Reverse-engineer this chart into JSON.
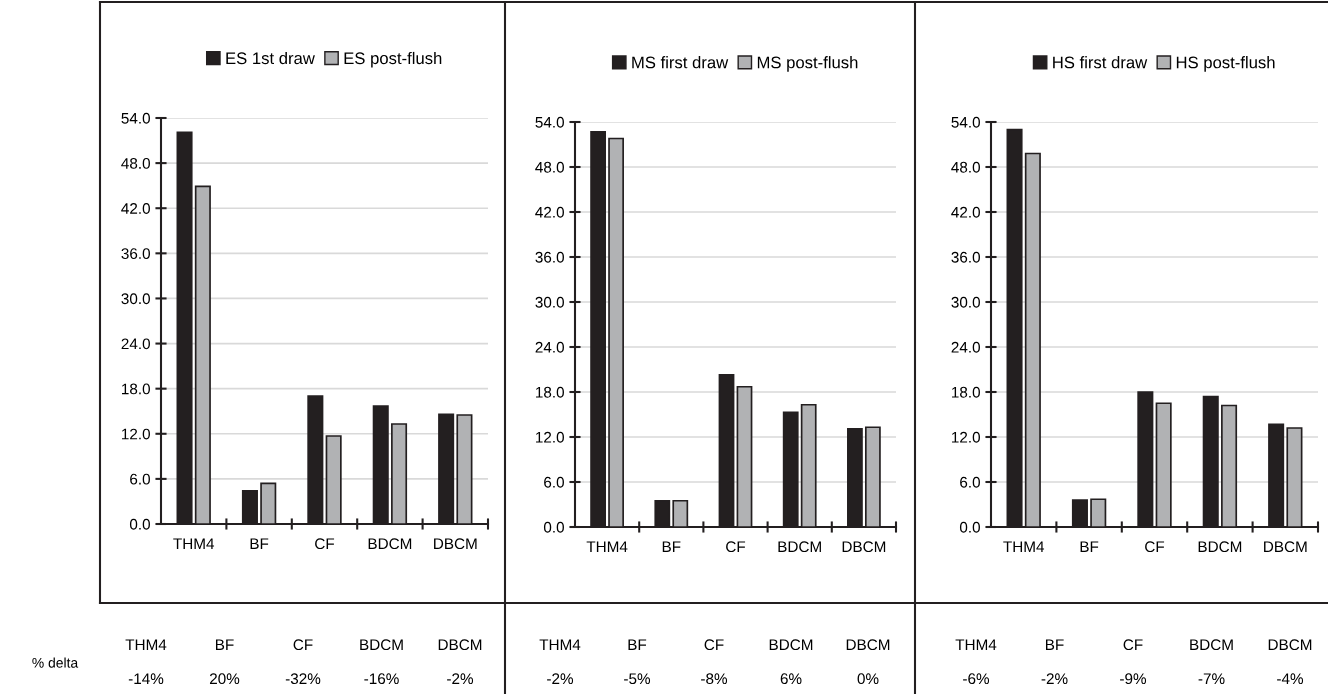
{
  "chart_data": [
    {
      "type": "bar",
      "categories": [
        "THM4",
        "BF",
        "CF",
        "BDCM",
        "DBCM"
      ],
      "series": [
        {
          "name": "ES 1st draw",
          "color": "#231f20",
          "values": [
            52.1,
            4.4,
            17.0,
            15.7,
            14.6
          ]
        },
        {
          "name": "ES post-flush",
          "color": "#b1b2b4",
          "values": [
            44.9,
            5.4,
            11.7,
            13.3,
            14.5
          ]
        }
      ],
      "ylim": [
        0,
        54
      ],
      "yticks": [
        {
          "value": 0,
          "label": "0.0"
        },
        {
          "value": 6,
          "label": "6.0"
        },
        {
          "value": 12,
          "label": "12.0"
        },
        {
          "value": 18,
          "label": "18.0"
        },
        {
          "value": 24,
          "label": "24.0"
        },
        {
          "value": 30,
          "label": "30.0"
        },
        {
          "value": 36,
          "label": "36.0"
        },
        {
          "value": 42,
          "label": "42.0"
        },
        {
          "value": 48,
          "label": "48.0"
        },
        {
          "value": 54,
          "label": "54.0"
        }
      ],
      "grid": "y",
      "legend": "top",
      "annotations": [
        "% delta",
        "THM4",
        "BF",
        "CF",
        "BDCM",
        "DBCM",
        "-14%",
        "20%",
        "-32%",
        "-16%",
        "-2%"
      ]
    },
    {
      "type": "bar",
      "categories": [
        "THM4",
        "BF",
        "CF",
        "BDCM",
        "DBCM"
      ],
      "series": [
        {
          "name": "MS first draw",
          "color": "#231f20",
          "values": [
            52.7,
            3.5,
            20.3,
            15.3,
            13.1
          ]
        },
        {
          "name": "MS post-flush",
          "color": "#b1b2b4",
          "values": [
            51.8,
            3.5,
            18.7,
            16.3,
            13.3
          ]
        }
      ],
      "ylim": [
        0,
        54
      ],
      "yticks": [
        {
          "value": 0,
          "label": "0.0"
        },
        {
          "value": 6,
          "label": "6.0"
        },
        {
          "value": 12,
          "label": "12.0"
        },
        {
          "value": 18,
          "label": "18.0"
        },
        {
          "value": 24,
          "label": "24.0"
        },
        {
          "value": 30,
          "label": "30.0"
        },
        {
          "value": 36,
          "label": "36.0"
        },
        {
          "value": 42,
          "label": "42.0"
        },
        {
          "value": 48,
          "label": "48.0"
        },
        {
          "value": 54,
          "label": "54.0"
        }
      ],
      "grid": "y",
      "legend": "top",
      "annotations": [
        "THM4",
        "BF",
        "CF",
        "BDCM",
        "DBCM",
        "-2%",
        "-5%",
        "-8%",
        "6%",
        "0%"
      ]
    },
    {
      "type": "bar",
      "categories": [
        "THM4",
        "BF",
        "CF",
        "BDCM",
        "DBCM"
      ],
      "series": [
        {
          "name": "HS first draw",
          "color": "#231f20",
          "values": [
            53.0,
            3.6,
            18.0,
            17.4,
            13.7
          ]
        },
        {
          "name": "HS post-flush",
          "color": "#b1b2b4",
          "values": [
            49.8,
            3.7,
            16.5,
            16.2,
            13.2
          ]
        }
      ],
      "ylim": [
        0,
        54
      ],
      "yticks": [
        {
          "value": 0,
          "label": "0.0"
        },
        {
          "value": 6,
          "label": "6.0"
        },
        {
          "value": 12,
          "label": "12.0"
        },
        {
          "value": 18,
          "label": "18.0"
        },
        {
          "value": 24,
          "label": "24.0"
        },
        {
          "value": 30,
          "label": "30.0"
        },
        {
          "value": 36,
          "label": "36.0"
        },
        {
          "value": 42,
          "label": "42.0"
        },
        {
          "value": 48,
          "label": "48.0"
        },
        {
          "value": 54,
          "label": "54.0"
        }
      ],
      "grid": "y",
      "legend": "top",
      "annotations": [
        "THM4",
        "BF",
        "CF",
        "BDCM",
        "DBCM",
        "-6%",
        "-2%",
        "-9%",
        "-7%",
        "-4%"
      ]
    }
  ]
}
